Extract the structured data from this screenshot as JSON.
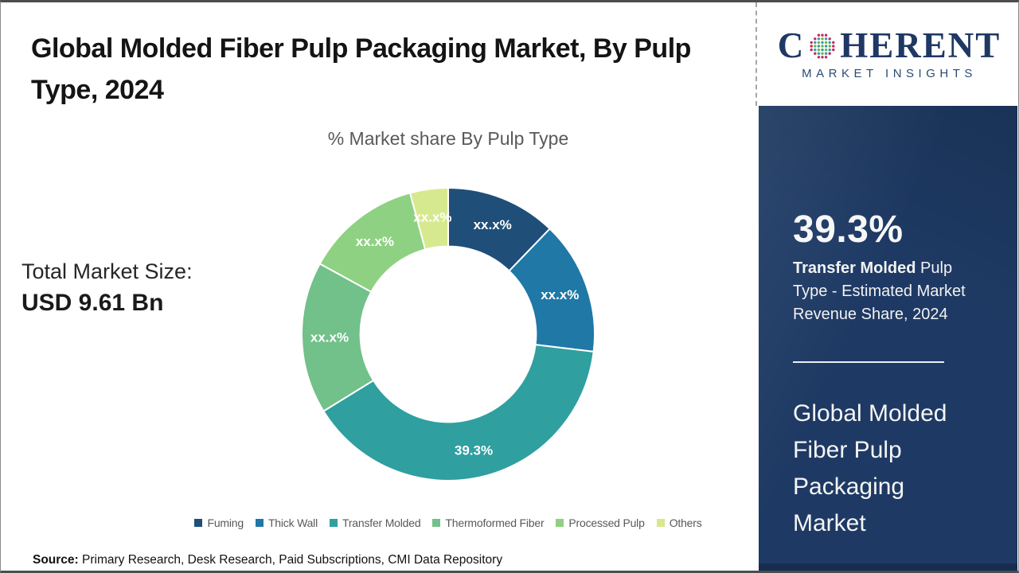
{
  "header": {
    "title": "Global Molded Fiber Pulp Packaging Market, By Pulp Type, 2024"
  },
  "logo": {
    "line1_prefix": "C",
    "line1_suffix": "HERENT",
    "line2": "MARKET INSIGHTS",
    "brand_color": "#1f3864"
  },
  "left_panel": {
    "total_label": "Total Market Size:",
    "total_value": "USD 9.61 Bn"
  },
  "chart_data": {
    "type": "pie",
    "subtype": "donut",
    "title": "% Market share By Pulp Type",
    "categories": [
      "Fuming",
      "Thick Wall",
      "Transfer Molded",
      "Thermoformed Fiber",
      "Processed Pulp",
      "Others"
    ],
    "values": [
      12.2,
      14.7,
      39.3,
      16.8,
      12.8,
      4.2
    ],
    "labels": [
      "xx.x%",
      "xx.x%",
      "39.3%",
      "xx.x%",
      "xx.x%",
      "xx.x%"
    ],
    "colors": [
      "#1f4e79",
      "#1f78a6",
      "#2f9fa0",
      "#72c08a",
      "#8ed182",
      "#d7e98f"
    ],
    "legend_position": "bottom",
    "inner_radius_ratio": 0.6,
    "start_angle_deg": 0,
    "label_color": "#ffffff"
  },
  "sidebar": {
    "stat_value": "39.3%",
    "stat_desc_bold": "Transfer Molded",
    "stat_desc_rest": " Pulp Type - Estimated Market Revenue Share, 2024",
    "market_name": "Global Molded Fiber Pulp Packaging Market",
    "bg_color": "#1e3a64"
  },
  "footer": {
    "source_label": "Source:",
    "source_text": " Primary Research, Desk Research, Paid Subscriptions, CMI Data Repository"
  }
}
